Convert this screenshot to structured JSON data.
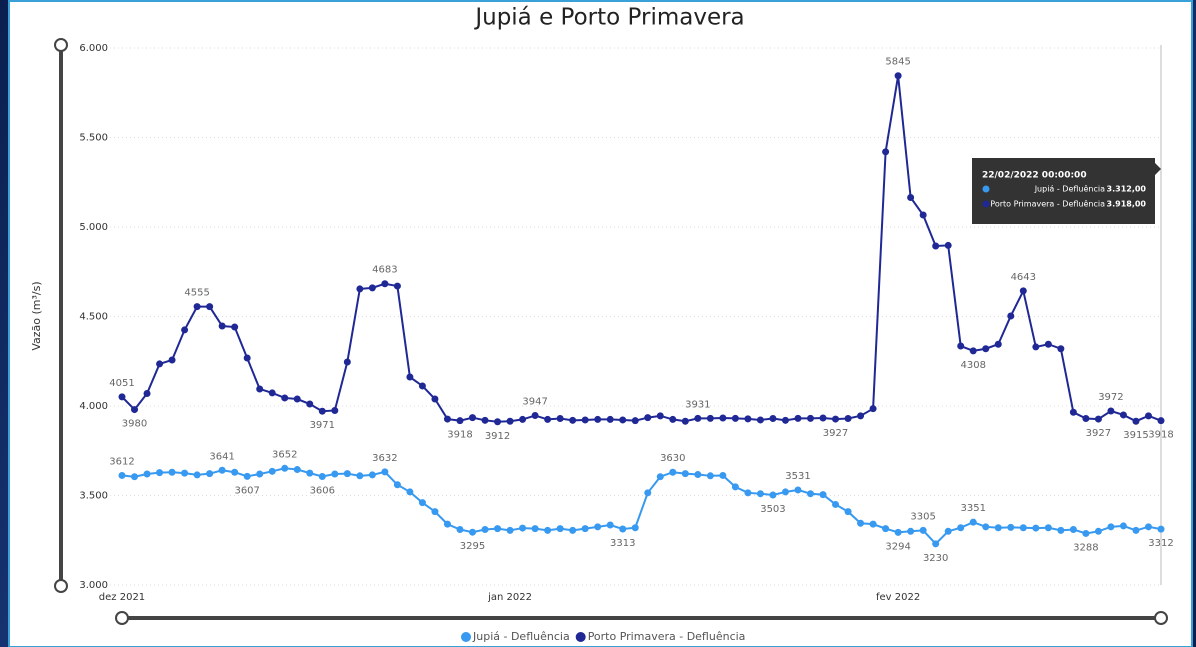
{
  "chart_data": {
    "type": "line",
    "title": "Jupiá e Porto Primavera",
    "y_label": "Vazão (m³/s)",
    "xlim": [
      0,
      83
    ],
    "xticks": [
      {
        "value": 0,
        "label": "dez 2021"
      },
      {
        "value": 31,
        "label": "jan 2022"
      },
      {
        "value": 62,
        "label": "fev 2022"
      }
    ],
    "ylim": [
      3000,
      6000
    ],
    "yticks": [
      {
        "value": 3000,
        "label": "3.000"
      },
      {
        "value": 3500,
        "label": "3.500"
      },
      {
        "value": 4000,
        "label": "4.000"
      },
      {
        "value": 4500,
        "label": "4.500"
      },
      {
        "value": 5000,
        "label": "5.000"
      },
      {
        "value": 5500,
        "label": "5.500"
      },
      {
        "value": 6000,
        "label": "6.000"
      }
    ],
    "grid": true,
    "legend": "bottom",
    "series": [
      {
        "name": "Jupiá - Defluência",
        "color": "#3799f0",
        "values": [
          3612,
          3605,
          3620,
          3628,
          3630,
          3625,
          3615,
          3622,
          3641,
          3630,
          3607,
          3620,
          3635,
          3652,
          3645,
          3625,
          3606,
          3620,
          3622,
          3610,
          3615,
          3632,
          3560,
          3520,
          3460,
          3410,
          3340,
          3310,
          3295,
          3310,
          3315,
          3305,
          3318,
          3315,
          3305,
          3315,
          3305,
          3315,
          3325,
          3335,
          3313,
          3320,
          3515,
          3605,
          3630,
          3622,
          3617,
          3610,
          3612,
          3548,
          3515,
          3510,
          3503,
          3520,
          3531,
          3510,
          3505,
          3450,
          3410,
          3345,
          3340,
          3315,
          3294,
          3300,
          3305,
          3230,
          3300,
          3320,
          3351,
          3325,
          3320,
          3322,
          3320,
          3318,
          3320,
          3305,
          3310,
          3288,
          3300,
          3325,
          3330,
          3305,
          3325,
          3312
        ]
      },
      {
        "name": "Porto Primavera - Defluência",
        "color": "#1f2895",
        "values": [
          4051,
          3980,
          4070,
          4235,
          4257,
          4425,
          4555,
          4555,
          4447,
          4441,
          4268,
          4095,
          4073,
          4045,
          4039,
          4011,
          3971,
          3975,
          4246,
          4654,
          4660,
          4683,
          4670,
          4162,
          4112,
          4039,
          3927,
          3918,
          3935,
          3920,
          3912,
          3915,
          3925,
          3947,
          3925,
          3930,
          3920,
          3922,
          3925,
          3925,
          3922,
          3918,
          3935,
          3945,
          3925,
          3915,
          3931,
          3931,
          3933,
          3931,
          3928,
          3922,
          3930,
          3920,
          3931,
          3931,
          3933,
          3927,
          3930,
          3945,
          3985,
          5420,
          5845,
          5165,
          5067,
          4894,
          4897,
          4335,
          4308,
          4320,
          4345,
          4503,
          4643,
          4330,
          4345,
          4320,
          3965,
          3930,
          3927,
          3972,
          3950,
          3915,
          3945,
          3918
        ]
      }
    ],
    "tooltip": {
      "title": "22/02/2022 00:00:00",
      "rows": [
        {
          "name": "Jupiá - Defluência",
          "value": "3.312,00"
        },
        {
          "name": "Porto Primavera - Defluência",
          "value": "3.918,00"
        }
      ]
    }
  }
}
